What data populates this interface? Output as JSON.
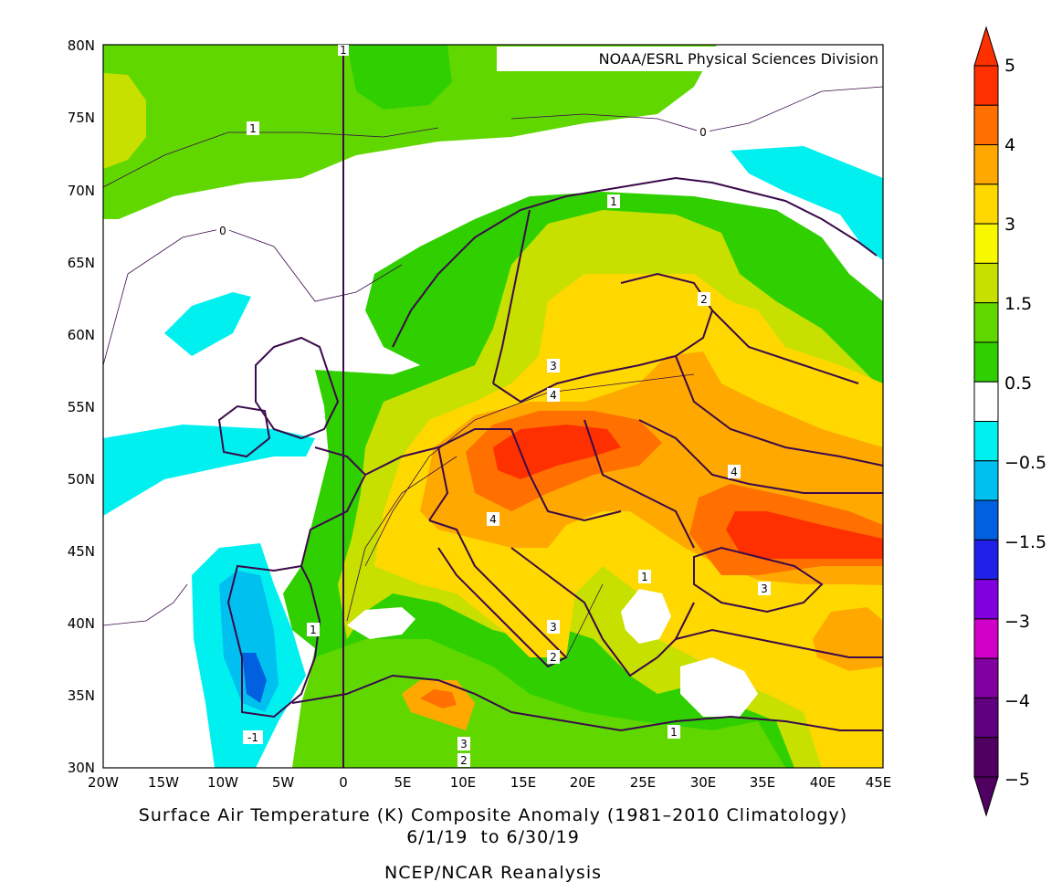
{
  "header": {
    "credit": "NOAA/ESRL Physical Sciences Division"
  },
  "caption": {
    "line1": "Surface Air Temperature (K) Composite Anomaly (1981–2010 Climatology)",
    "line2": "6/1/19  to 6/30/19",
    "line3": "NCEP/NCAR Reanalysis"
  },
  "axes": {
    "lat_labels": [
      "80N",
      "75N",
      "70N",
      "65N",
      "60N",
      "55N",
      "50N",
      "45N",
      "40N",
      "35N",
      "30N"
    ],
    "lon_labels": [
      "20W",
      "15W",
      "10W",
      "5W",
      "0",
      "5E",
      "10E",
      "15E",
      "20E",
      "25E",
      "30E",
      "35E",
      "40E",
      "45E"
    ]
  },
  "contour_labels": [
    "1",
    "0",
    "0",
    "1",
    "2",
    "3",
    "4",
    "4",
    "4",
    "1",
    "3",
    "1",
    "3",
    "2",
    "1",
    "3",
    "2",
    "-1",
    "1"
  ],
  "colorbar": {
    "labels": [
      "5",
      "4",
      "3",
      "1.5",
      "0.5",
      "−0.5",
      "−1.5",
      "−3",
      "−4",
      "−5"
    ],
    "colors": [
      "#ff3000",
      "#ff7000",
      "#ffa800",
      "#ffd800",
      "#f8f800",
      "#c8e000",
      "#60d800",
      "#30d000",
      "#ffffff",
      "#00f0f0",
      "#00c0f0",
      "#0060e0",
      "#2020e8",
      "#8000e0",
      "#d000c8",
      "#8000a0",
      "#600080",
      "#500060"
    ]
  },
  "colors": {
    "green_light": "#60d800",
    "green": "#30d000",
    "yellow_green": "#c8e000",
    "yellow": "#ffd800",
    "orange": "#ffa800",
    "dark_orange": "#ff7000",
    "red": "#ff3000",
    "cyan": "#00f0f0",
    "sky": "#00c0f0",
    "blue": "#0060e0",
    "coast": "#3a0a4a"
  }
}
